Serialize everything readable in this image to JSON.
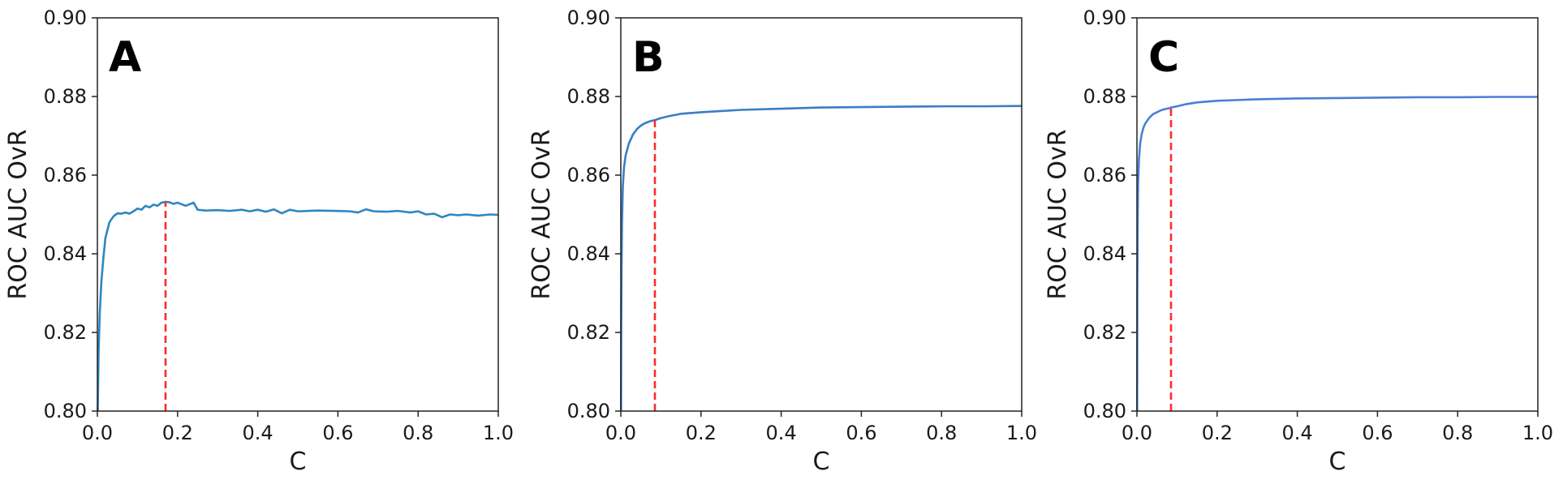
{
  "colors": {
    "marker_line": "#ff2a2a",
    "axes": "#222222"
  },
  "chart_data": [
    {
      "panel_label": "A",
      "type": "line",
      "xlabel": "C",
      "ylabel": "ROC AUC OvR",
      "xlim": [
        0.0,
        1.0
      ],
      "ylim": [
        0.8,
        0.9
      ],
      "xticks": [
        "0.0",
        "0.2",
        "0.4",
        "0.6",
        "0.8",
        "1.0"
      ],
      "yticks": [
        "0.80",
        "0.82",
        "0.84",
        "0.86",
        "0.88",
        "0.90"
      ],
      "grid": false,
      "series": [
        {
          "color": "#2e86c1",
          "x": [
            0.001,
            0.003,
            0.006,
            0.01,
            0.015,
            0.02,
            0.03,
            0.04,
            0.05,
            0.06,
            0.07,
            0.08,
            0.09,
            0.1,
            0.11,
            0.12,
            0.13,
            0.14,
            0.15,
            0.16,
            0.17,
            0.18,
            0.19,
            0.2,
            0.22,
            0.24,
            0.25,
            0.27,
            0.3,
            0.33,
            0.36,
            0.38,
            0.4,
            0.42,
            0.44,
            0.46,
            0.48,
            0.5,
            0.55,
            0.6,
            0.63,
            0.65,
            0.67,
            0.69,
            0.72,
            0.75,
            0.78,
            0.8,
            0.82,
            0.84,
            0.86,
            0.88,
            0.9,
            0.92,
            0.95,
            0.98,
            1.0
          ],
          "y": [
            0.8,
            0.815,
            0.825,
            0.833,
            0.839,
            0.844,
            0.848,
            0.8495,
            0.8503,
            0.8502,
            0.8505,
            0.8502,
            0.8508,
            0.8515,
            0.8512,
            0.8522,
            0.8518,
            0.8525,
            0.8522,
            0.853,
            0.8532,
            0.8531,
            0.8527,
            0.853,
            0.8522,
            0.853,
            0.8512,
            0.851,
            0.8511,
            0.8509,
            0.8512,
            0.8508,
            0.8512,
            0.8507,
            0.8513,
            0.8503,
            0.8512,
            0.8508,
            0.851,
            0.8509,
            0.8508,
            0.8505,
            0.8513,
            0.8508,
            0.8507,
            0.8509,
            0.8505,
            0.8508,
            0.85,
            0.8502,
            0.8493,
            0.85,
            0.8498,
            0.85,
            0.8497,
            0.85,
            0.8499
          ]
        }
      ],
      "marker_x": 0.17
    },
    {
      "panel_label": "B",
      "type": "line",
      "xlabel": "C",
      "ylabel": "ROC AUC OvR",
      "xlim": [
        0.0,
        1.0
      ],
      "ylim": [
        0.8,
        0.9
      ],
      "xticks": [
        "0.0",
        "0.2",
        "0.4",
        "0.6",
        "0.8",
        "1.0"
      ],
      "yticks": [
        "0.80",
        "0.82",
        "0.84",
        "0.86",
        "0.88",
        "0.90"
      ],
      "grid": false,
      "series": [
        {
          "color": "#3a7dc4",
          "x": [
            0.0005,
            0.001,
            0.002,
            0.003,
            0.005,
            0.008,
            0.012,
            0.016,
            0.02,
            0.03,
            0.04,
            0.05,
            0.06,
            0.07,
            0.08,
            0.085,
            0.1,
            0.12,
            0.15,
            0.2,
            0.25,
            0.3,
            0.4,
            0.5,
            0.6,
            0.7,
            0.8,
            0.9,
            1.0
          ],
          "y": [
            0.8,
            0.82,
            0.838,
            0.848,
            0.857,
            0.862,
            0.865,
            0.8665,
            0.868,
            0.8703,
            0.8717,
            0.8726,
            0.8732,
            0.8736,
            0.8739,
            0.874,
            0.8745,
            0.875,
            0.8756,
            0.876,
            0.8763,
            0.8766,
            0.8769,
            0.8772,
            0.8773,
            0.8774,
            0.8775,
            0.8775,
            0.8776
          ]
        }
      ],
      "marker_x": 0.085
    },
    {
      "panel_label": "C",
      "type": "line",
      "xlabel": "C",
      "ylabel": "ROC AUC OvR",
      "xlim": [
        0.0,
        1.0
      ],
      "ylim": [
        0.8,
        0.9
      ],
      "xticks": [
        "0.0",
        "0.2",
        "0.4",
        "0.6",
        "0.8",
        "1.0"
      ],
      "yticks": [
        "0.80",
        "0.82",
        "0.84",
        "0.86",
        "0.88",
        "0.90"
      ],
      "grid": false,
      "series": [
        {
          "color": "#4a7fd6",
          "x": [
            0.0005,
            0.001,
            0.002,
            0.003,
            0.005,
            0.008,
            0.012,
            0.016,
            0.02,
            0.03,
            0.04,
            0.05,
            0.06,
            0.07,
            0.08,
            0.085,
            0.1,
            0.12,
            0.15,
            0.2,
            0.25,
            0.3,
            0.4,
            0.5,
            0.6,
            0.7,
            0.8,
            0.9,
            1.0
          ],
          "y": [
            0.8,
            0.83,
            0.85,
            0.858,
            0.864,
            0.868,
            0.8705,
            0.872,
            0.873,
            0.8745,
            0.8755,
            0.876,
            0.8765,
            0.8768,
            0.877,
            0.8772,
            0.8775,
            0.878,
            0.8785,
            0.8789,
            0.8791,
            0.8793,
            0.8795,
            0.8796,
            0.8797,
            0.8798,
            0.8798,
            0.8799,
            0.8799
          ]
        }
      ],
      "marker_x": 0.085
    }
  ]
}
